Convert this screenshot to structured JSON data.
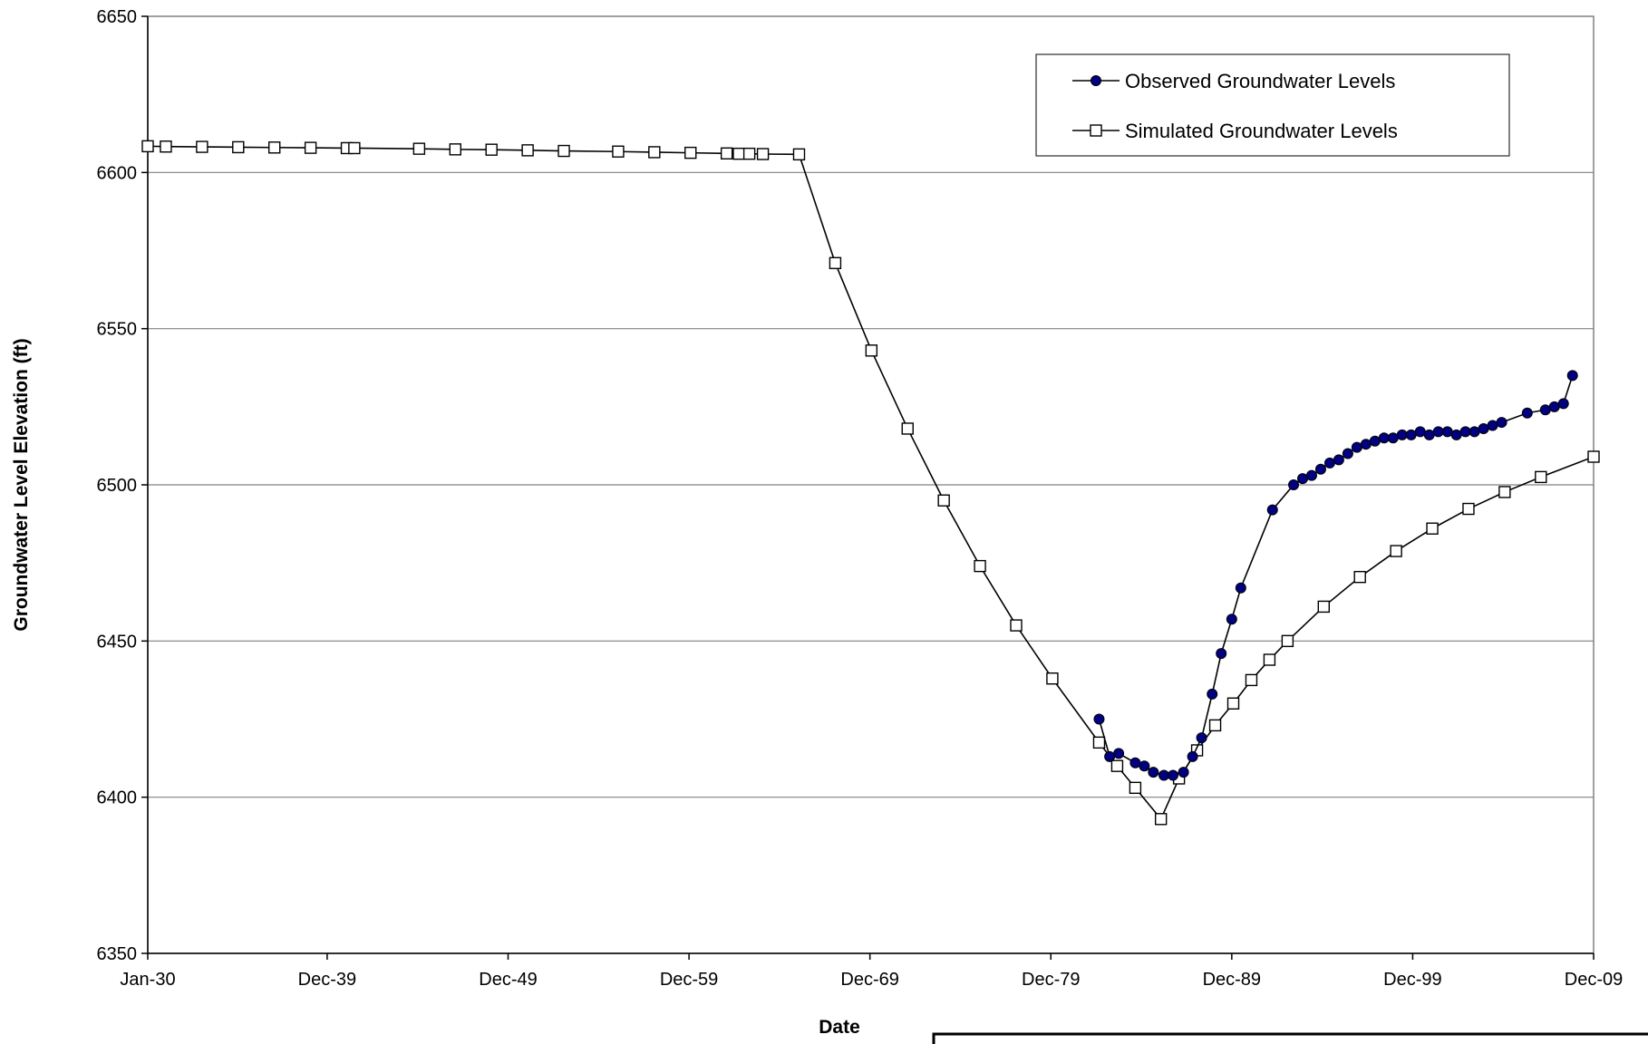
{
  "chart_data": {
    "type": "line",
    "title": "",
    "xlabel": "Date",
    "ylabel": "Groundwater Level Elevation (ft)",
    "x_tick_labels": [
      "Jan-30",
      "Dec-39",
      "Dec-49",
      "Dec-59",
      "Dec-69",
      "Dec-79",
      "Dec-89",
      "Dec-99",
      "Dec-09"
    ],
    "x_tick_dates": [
      "1930-01",
      "1939-12",
      "1949-12",
      "1959-12",
      "1969-12",
      "1979-12",
      "1989-12",
      "1999-12",
      "2009-12"
    ],
    "y_ticks": [
      6350,
      6400,
      6450,
      6500,
      6550,
      6600,
      6650
    ],
    "ylim": [
      6350,
      6650
    ],
    "grid": "horizontal",
    "legend_position": "top-right",
    "series": [
      {
        "name": "Simulated Groundwater Levels",
        "marker": "square-open",
        "color": "#000000",
        "points": [
          [
            "1930-01",
            6608.4
          ],
          [
            "1931-01",
            6608.3
          ],
          [
            "1933-01",
            6608.2
          ],
          [
            "1935-01",
            6608.1
          ],
          [
            "1937-01",
            6608.0
          ],
          [
            "1939-01",
            6607.9
          ],
          [
            "1941-01",
            6607.8
          ],
          [
            "1941-06",
            6607.8
          ],
          [
            "1945-01",
            6607.6
          ],
          [
            "1947-01",
            6607.4
          ],
          [
            "1949-01",
            6607.3
          ],
          [
            "1951-01",
            6607.1
          ],
          [
            "1953-01",
            6606.9
          ],
          [
            "1956-01",
            6606.7
          ],
          [
            "1958-01",
            6606.5
          ],
          [
            "1960-01",
            6606.3
          ],
          [
            "1962-01",
            6606.1
          ],
          [
            "1962-09",
            6606.0
          ],
          [
            "1963-04",
            6606.0
          ],
          [
            "1964-01",
            6605.9
          ],
          [
            "1966-01",
            6605.8
          ],
          [
            "1968-01",
            6571.0
          ],
          [
            "1970-01",
            6543.0
          ],
          [
            "1972-01",
            6518.0
          ],
          [
            "1974-01",
            6495.0
          ],
          [
            "1976-01",
            6474.0
          ],
          [
            "1978-01",
            6455.0
          ],
          [
            "1980-01",
            6438.0
          ],
          [
            "1982-08",
            6417.5
          ],
          [
            "1983-08",
            6410.0
          ],
          [
            "1984-08",
            6403.0
          ],
          [
            "1986-01",
            6393.0
          ],
          [
            "1987-01",
            6406.0
          ],
          [
            "1988-01",
            6415.0
          ],
          [
            "1989-01",
            6423.0
          ],
          [
            "1990-01",
            6430.0
          ],
          [
            "1991-01",
            6437.5
          ],
          [
            "1992-01",
            6444.0
          ],
          [
            "1993-01",
            6450.0
          ],
          [
            "1995-01",
            6461.0
          ],
          [
            "1997-01",
            6470.5
          ],
          [
            "1999-01",
            6478.8
          ],
          [
            "2001-01",
            6486.0
          ],
          [
            "2003-01",
            6492.3
          ],
          [
            "2005-01",
            6497.7
          ],
          [
            "2007-01",
            6502.5
          ],
          [
            "2009-12",
            6509.0
          ]
        ]
      },
      {
        "name": "Observed Groundwater Levels",
        "marker": "circle-filled",
        "color": "#000080",
        "points": [
          [
            "1982-08",
            6425.0
          ],
          [
            "1983-03",
            6413.0
          ],
          [
            "1983-09",
            6414.0
          ],
          [
            "1984-08",
            6411.0
          ],
          [
            "1985-02",
            6410.0
          ],
          [
            "1985-08",
            6408.0
          ],
          [
            "1986-03",
            6407.0
          ],
          [
            "1986-09",
            6407.0
          ],
          [
            "1987-04",
            6408.0
          ],
          [
            "1987-10",
            6413.0
          ],
          [
            "1988-04",
            6419.0
          ],
          [
            "1988-11",
            6433.0
          ],
          [
            "1989-05",
            6446.0
          ],
          [
            "1989-12",
            6457.0
          ],
          [
            "1990-06",
            6467.0
          ],
          [
            "1992-03",
            6492.0
          ],
          [
            "1993-05",
            6500.0
          ],
          [
            "1993-11",
            6502.0
          ],
          [
            "1994-05",
            6503.0
          ],
          [
            "1994-11",
            6505.0
          ],
          [
            "1995-05",
            6507.0
          ],
          [
            "1995-11",
            6508.0
          ],
          [
            "1996-05",
            6510.0
          ],
          [
            "1996-11",
            6512.0
          ],
          [
            "1997-05",
            6513.0
          ],
          [
            "1997-11",
            6514.0
          ],
          [
            "1998-05",
            6515.0
          ],
          [
            "1998-11",
            6515.0
          ],
          [
            "1999-05",
            6516.0
          ],
          [
            "1999-11",
            6516.0
          ],
          [
            "2000-05",
            6517.0
          ],
          [
            "2000-11",
            6516.0
          ],
          [
            "2001-05",
            6517.0
          ],
          [
            "2001-11",
            6517.0
          ],
          [
            "2002-05",
            6516.0
          ],
          [
            "2002-11",
            6517.0
          ],
          [
            "2003-05",
            6517.0
          ],
          [
            "2003-11",
            6518.0
          ],
          [
            "2004-05",
            6519.0
          ],
          [
            "2004-11",
            6520.0
          ],
          [
            "2006-04",
            6523.0
          ],
          [
            "2007-04",
            6524.0
          ],
          [
            "2007-10",
            6525.0
          ],
          [
            "2008-04",
            6526.0
          ],
          [
            "2008-10",
            6535.0
          ]
        ]
      }
    ]
  }
}
